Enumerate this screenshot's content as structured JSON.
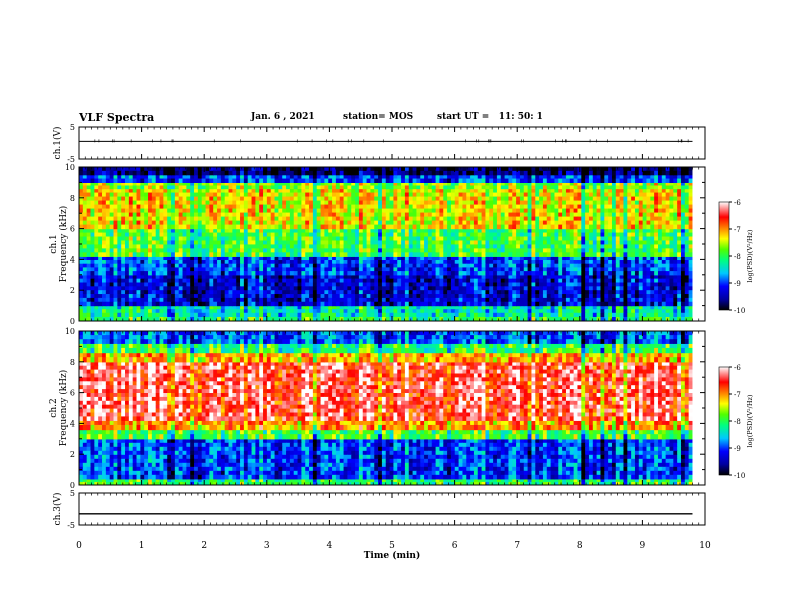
{
  "header": {
    "title": "VLF Spectra",
    "date": "Jan. 6 , 2021",
    "station": "station= MOS",
    "start_ut": "start UT =   11: 50: 1"
  },
  "chart_data": [
    {
      "type": "line",
      "panel": "ch1-voltage",
      "ylabel": "ch.1(V)",
      "ylim": [
        -5,
        5
      ],
      "yticks": [
        "5",
        "-5"
      ],
      "series": [
        {
          "x": [
            0,
            9.8
          ],
          "y": [
            0.5,
            0.5
          ]
        }
      ],
      "xlim": [
        0,
        10
      ]
    },
    {
      "type": "heatmap",
      "panel": "ch1-spectrogram",
      "ylabel": "ch.1\nFrequency (kHz)",
      "ylim": [
        0,
        10
      ],
      "yticks": [
        "0",
        "2",
        "4",
        "6",
        "8",
        "10"
      ],
      "xlim": [
        0,
        10
      ],
      "data_xmax": 9.8,
      "bands": [
        {
          "fmin": 0.0,
          "fmax": 0.3,
          "level": -8.0
        },
        {
          "fmin": 0.3,
          "fmax": 1.0,
          "level": -8.3
        },
        {
          "fmin": 1.0,
          "fmax": 3.0,
          "level": -9.3
        },
        {
          "fmin": 3.0,
          "fmax": 4.2,
          "level": -9.0
        },
        {
          "fmin": 4.2,
          "fmax": 6.0,
          "level": -7.9
        },
        {
          "fmin": 6.0,
          "fmax": 8.6,
          "level": -7.3
        },
        {
          "fmin": 8.6,
          "fmax": 9.0,
          "level": -7.6
        },
        {
          "fmin": 9.0,
          "fmax": 9.5,
          "level": -9.0
        },
        {
          "fmin": 9.5,
          "fmax": 10.0,
          "level": -9.7
        }
      ],
      "colorbar": {
        "label": "log(PSD)(V²/Hz)",
        "min": -10,
        "max": -6,
        "ticks": [
          "-6",
          "-7",
          "-8",
          "-9",
          "-10"
        ]
      }
    },
    {
      "type": "heatmap",
      "panel": "ch2-spectrogram",
      "ylabel": "ch.2\nFrequency (kHz)",
      "ylim": [
        0,
        10
      ],
      "yticks": [
        "0",
        "2",
        "4",
        "6",
        "8",
        "10"
      ],
      "xlim": [
        0,
        10
      ],
      "data_xmax": 9.8,
      "bands": [
        {
          "fmin": 0.0,
          "fmax": 0.4,
          "level": -8.0
        },
        {
          "fmin": 0.4,
          "fmax": 3.0,
          "level": -9.0
        },
        {
          "fmin": 3.0,
          "fmax": 3.6,
          "level": -7.9
        },
        {
          "fmin": 3.6,
          "fmax": 4.2,
          "level": -7.0
        },
        {
          "fmin": 4.2,
          "fmax": 8.0,
          "level": -6.4
        },
        {
          "fmin": 8.0,
          "fmax": 8.6,
          "level": -7.1
        },
        {
          "fmin": 8.6,
          "fmax": 9.2,
          "level": -8.0
        },
        {
          "fmin": 9.2,
          "fmax": 10.0,
          "level": -8.9
        }
      ],
      "colorbar": {
        "label": "log(PSD)(V²/Hz)",
        "min": -10,
        "max": -6,
        "ticks": [
          "-6",
          "-7",
          "-8",
          "-9",
          "-10"
        ]
      }
    },
    {
      "type": "line",
      "panel": "ch3-voltage",
      "ylabel": "ch.3(V)",
      "ylim": [
        -5,
        5
      ],
      "yticks": [
        "5",
        "-5"
      ],
      "series": [
        {
          "x": [
            0,
            9.8
          ],
          "y": [
            -1.5,
            -1.5
          ]
        }
      ],
      "xlim": [
        0,
        10
      ],
      "xlabel": "Time (min)",
      "xticks": [
        "0",
        "1",
        "2",
        "3",
        "4",
        "5",
        "6",
        "7",
        "8",
        "9",
        "10"
      ]
    }
  ]
}
